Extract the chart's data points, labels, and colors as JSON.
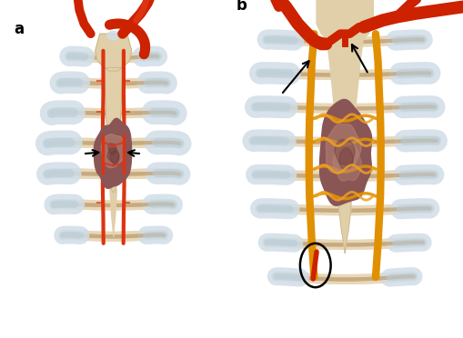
{
  "figure_width": 5.09,
  "figure_height": 3.72,
  "dpi": 100,
  "bg_color": "#ffffff",
  "colors": {
    "bone_light": "#e8d8b8",
    "bone_medium": "#c8aa80",
    "bone_outline": "#b89060",
    "cartilage_blue": "#b8ccd8",
    "cartilage_light": "#d0dde8",
    "sternum_light": "#e0cfa8",
    "sternum_dark": "#c8b080",
    "artery_red": "#cc2200",
    "artery_bright": "#dd3311",
    "artery_dark": "#aa1800",
    "catheter_orange": "#e09000",
    "catheter_bright": "#f0a020",
    "tumor_base": "#9b7060",
    "tumor_mid": "#8a5555",
    "tumor_dark": "#6a3535",
    "tumor_light": "#b88878",
    "bg_white": "#ffffff",
    "bg_light": "#f0f4f8",
    "shadow": "#d8c8a8"
  }
}
